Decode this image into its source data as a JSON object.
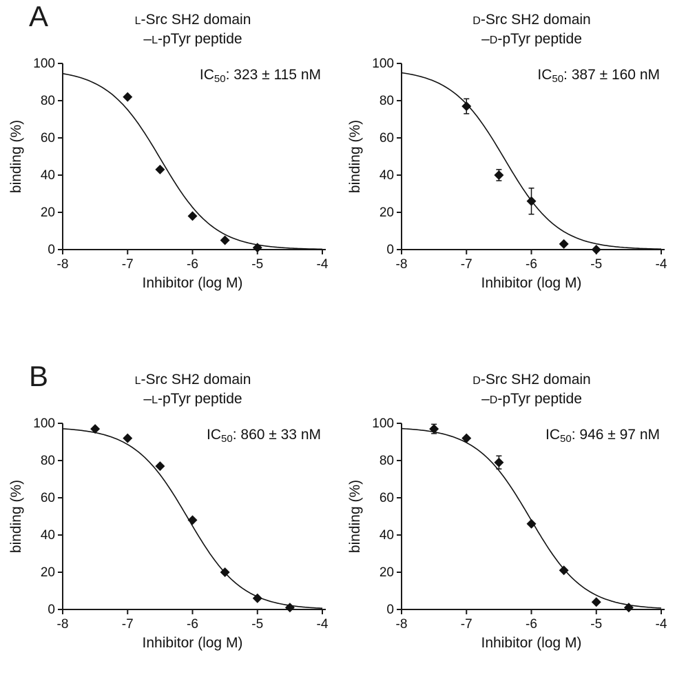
{
  "panels": [
    {
      "label": "A"
    },
    {
      "label": "B"
    }
  ],
  "chart_data": [
    {
      "panel": "A",
      "position": "left",
      "type": "scatter",
      "title": {
        "sc1": "L",
        "rest1": "-Src SH2 domain",
        "pre2": "–",
        "sc2": "L",
        "rest2": "-pTyr peptide"
      },
      "ic50": {
        "prefix": "IC",
        "sub": "50",
        "rest": ": 323 ± 115 nM"
      },
      "ic50_value_nM": 323,
      "ic50_error_nM": 115,
      "x": [
        -7,
        -6.5,
        -6,
        -5.5,
        -5
      ],
      "y": [
        82,
        43,
        18,
        5,
        1
      ],
      "yerr": [
        0,
        0,
        0,
        0,
        0
      ],
      "fit": {
        "top": 97,
        "bottom": 0,
        "logIC50": -6.49,
        "hill": 1.05
      },
      "xlim": [
        -8,
        -4
      ],
      "ylim": [
        0,
        100
      ],
      "xticks": [
        -8,
        -7,
        -6,
        -5,
        -4
      ],
      "yticks": [
        0,
        20,
        40,
        60,
        80,
        100
      ],
      "xlabel": "Inhibitor (log M)",
      "ylabel": "binding (%)"
    },
    {
      "panel": "A",
      "position": "right",
      "type": "scatter",
      "title": {
        "sc1": "D",
        "rest1": "-Src SH2 domain",
        "pre2": "–",
        "sc2": "D",
        "rest2": "-pTyr peptide"
      },
      "ic50": {
        "prefix": "IC",
        "sub": "50",
        "rest": ": 387 ± 160 nM"
      },
      "ic50_value_nM": 387,
      "ic50_error_nM": 160,
      "x": [
        -7,
        -6.5,
        -6,
        -5.5,
        -5
      ],
      "y": [
        77,
        40,
        26,
        3,
        0
      ],
      "yerr": [
        4,
        3,
        7,
        0,
        0
      ],
      "fit": {
        "top": 97,
        "bottom": 0,
        "logIC50": -6.41,
        "hill": 1.05
      },
      "xlim": [
        -8,
        -4
      ],
      "ylim": [
        0,
        100
      ],
      "xticks": [
        -8,
        -7,
        -6,
        -5,
        -4
      ],
      "yticks": [
        0,
        20,
        40,
        60,
        80,
        100
      ],
      "xlabel": "Inhibitor (log M)",
      "ylabel": "binding (%)"
    },
    {
      "panel": "B",
      "position": "left",
      "type": "scatter",
      "title": {
        "sc1": "L",
        "rest1": "-Src SH2 domain",
        "pre2": "–",
        "sc2": "L",
        "rest2": "-pTyr peptide"
      },
      "ic50": {
        "prefix": "IC",
        "sub": "50",
        "rest": ": 860 ± 33 nM"
      },
      "ic50_value_nM": 860,
      "ic50_error_nM": 33,
      "x": [
        -7.5,
        -7,
        -6.5,
        -6,
        -5.5,
        -5,
        -4.5
      ],
      "y": [
        97,
        92,
        77,
        48,
        20,
        6,
        1
      ],
      "yerr": [
        0,
        0,
        0,
        0,
        0,
        0,
        0
      ],
      "fit": {
        "top": 98,
        "bottom": 0,
        "logIC50": -6.07,
        "hill": 1.05
      },
      "xlim": [
        -8,
        -4
      ],
      "ylim": [
        0,
        100
      ],
      "xticks": [
        -8,
        -7,
        -6,
        -5,
        -4
      ],
      "yticks": [
        0,
        20,
        40,
        60,
        80,
        100
      ],
      "xlabel": "Inhibitor (log M)",
      "ylabel": "binding (%)"
    },
    {
      "panel": "B",
      "position": "right",
      "type": "scatter",
      "title": {
        "sc1": "D",
        "rest1": "-Src SH2 domain",
        "pre2": "–",
        "sc2": "D",
        "rest2": "-pTyr peptide"
      },
      "ic50": {
        "prefix": "IC",
        "sub": "50",
        "rest": ": 946 ± 97 nM"
      },
      "ic50_value_nM": 946,
      "ic50_error_nM": 97,
      "x": [
        -7.5,
        -7,
        -6.5,
        -6,
        -5.5,
        -5,
        -4.5
      ],
      "y": [
        97,
        92,
        79,
        46,
        21,
        4,
        1
      ],
      "yerr": [
        2.5,
        0,
        3.5,
        0,
        0,
        0,
        0
      ],
      "fit": {
        "top": 98,
        "bottom": 0,
        "logIC50": -6.02,
        "hill": 1.05
      },
      "xlim": [
        -8,
        -4
      ],
      "ylim": [
        0,
        100
      ],
      "xticks": [
        -8,
        -7,
        -6,
        -5,
        -4
      ],
      "yticks": [
        0,
        20,
        40,
        60,
        80,
        100
      ],
      "xlabel": "Inhibitor (log M)",
      "ylabel": "binding (%)"
    }
  ]
}
